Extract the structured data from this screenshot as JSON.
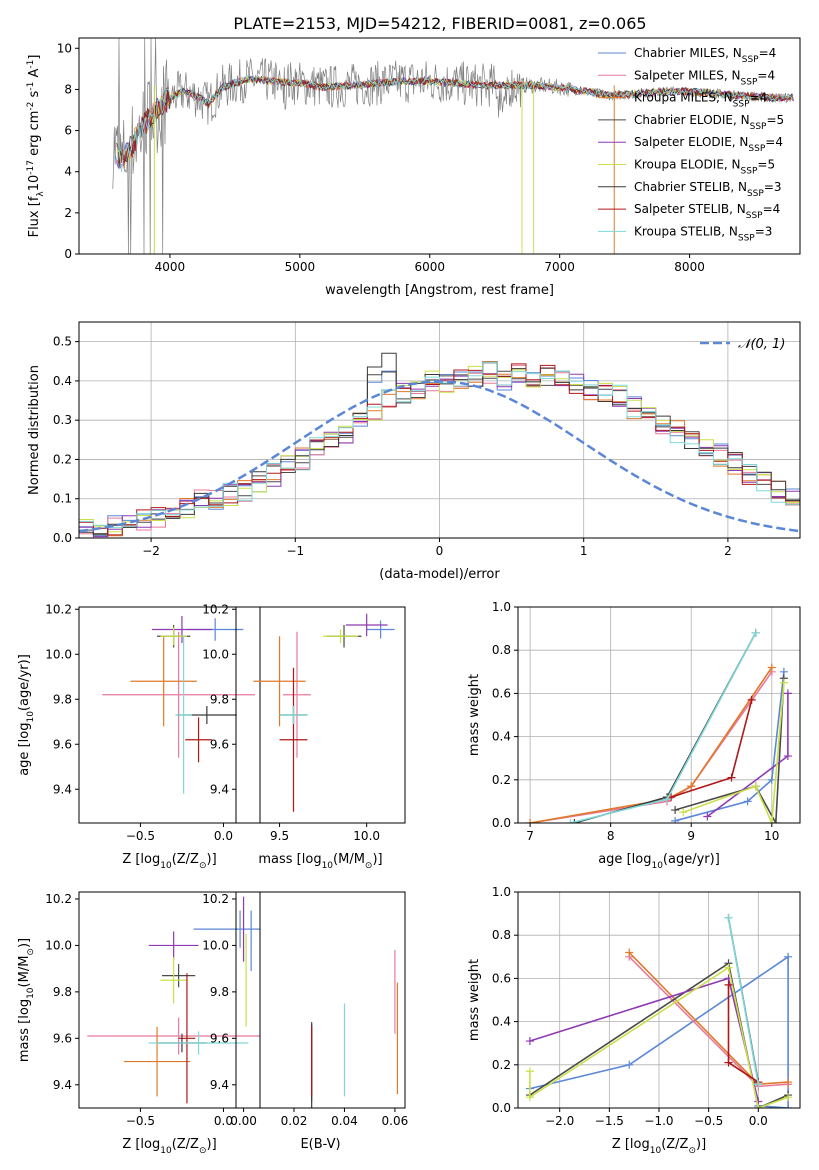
{
  "title": "PLATE=2153, MJD=54212, FIBERID=0081, z=0.065",
  "colors": {
    "series": [
      "#5b87d6",
      "#e8799a",
      "#e07a2a",
      "#4a4a4a",
      "#8e3ab2",
      "#c9e04a",
      "#3a3a3a",
      "#b01818",
      "#7fd8d8"
    ],
    "data": "#808080",
    "model": "#5fcfd8",
    "ref": "#5b87d6"
  },
  "chart_data": [
    {
      "type": "line",
      "title": "PLATE=2153, MJD=54212, FIBERID=0081, z=0.065",
      "xlabel": "wavelength [Angstrom, rest frame]",
      "ylabel_main": "Flux [f",
      "ylabel_sub": "λ",
      "ylabel_rest": "10",
      "ylabel_exp": "-17",
      "ylabel_tail": " erg cm",
      "ylabel_exp2": "-2",
      "ylabel_tail2": " s",
      "ylabel_exp3": "-1",
      "ylabel_tail3": " A",
      "ylabel_exp4": "-1",
      "ylabel_end": "]",
      "xlim": [
        3300,
        8850
      ],
      "ylim": [
        0,
        10.5
      ],
      "xticks": [
        "4000",
        "5000",
        "6000",
        "7000",
        "8000"
      ],
      "xtick_values": [
        4000,
        5000,
        6000,
        7000,
        8000
      ],
      "yticks": [
        "0",
        "2",
        "4",
        "6",
        "8",
        "10"
      ],
      "ytick_values": [
        0,
        2,
        4,
        6,
        8,
        10
      ],
      "continuum": [
        [
          3550,
          5.5
        ],
        [
          3620,
          4.5
        ],
        [
          3700,
          5.2
        ],
        [
          3800,
          6.3
        ],
        [
          3900,
          7.0
        ],
        [
          4000,
          7.6
        ],
        [
          4100,
          7.9
        ],
        [
          4200,
          7.7
        ],
        [
          4300,
          7.3
        ],
        [
          4400,
          8.1
        ],
        [
          4600,
          8.5
        ],
        [
          4800,
          8.4
        ],
        [
          5000,
          8.3
        ],
        [
          5200,
          8.1
        ],
        [
          5400,
          8.2
        ],
        [
          5600,
          8.3
        ],
        [
          5800,
          8.4
        ],
        [
          6000,
          8.4
        ],
        [
          6200,
          8.3
        ],
        [
          6400,
          8.2
        ],
        [
          6600,
          8.2
        ],
        [
          6800,
          8.2
        ],
        [
          7000,
          8.1
        ],
        [
          7200,
          7.9
        ],
        [
          7400,
          7.7
        ],
        [
          7600,
          7.8
        ],
        [
          7800,
          7.9
        ],
        [
          8000,
          7.9
        ],
        [
          8200,
          7.8
        ],
        [
          8400,
          7.7
        ],
        [
          8600,
          7.6
        ],
        [
          8800,
          7.6
        ]
      ],
      "legend": [
        {
          "label": "Chabrier MILES, N",
          "sub": "SSP",
          "tail": "=4"
        },
        {
          "label": "Salpeter MILES, N",
          "sub": "SSP",
          "tail": "=4"
        },
        {
          "label": "Kroupa MILES, N",
          "sub": "SSP",
          "tail": "=4"
        },
        {
          "label": "Chabrier ELODIE, N",
          "sub": "SSP",
          "tail": "=5"
        },
        {
          "label": "Salpeter ELODIE, N",
          "sub": "SSP",
          "tail": "=4"
        },
        {
          "label": "Kroupa ELODIE, N",
          "sub": "SSP",
          "tail": "=5"
        },
        {
          "label": "Chabrier STELIB, N",
          "sub": "SSP",
          "tail": "=3"
        },
        {
          "label": "Salpeter STELIB, N",
          "sub": "SSP",
          "tail": "=4"
        },
        {
          "label": "Kroupa STELIB, N",
          "sub": "SSP",
          "tail": "=3"
        }
      ],
      "legend_position": "right"
    },
    {
      "type": "histogram",
      "xlabel": "(data-model)/error",
      "ylabel": "Normed distribution",
      "xlim": [
        -2.5,
        2.5
      ],
      "ylim": [
        0,
        0.55
      ],
      "xticks": [
        "−2",
        "−1",
        "0",
        "1",
        "2"
      ],
      "xtick_values": [
        -2,
        -1,
        0,
        1,
        2
      ],
      "yticks": [
        "0.0",
        "0.1",
        "0.2",
        "0.3",
        "0.4",
        "0.5"
      ],
      "ytick_values": [
        0,
        0.1,
        0.2,
        0.3,
        0.4,
        0.5
      ],
      "bin_width": 0.1,
      "bin_start": -2.5,
      "base_values": [
        0.02,
        0.03,
        0.03,
        0.04,
        0.05,
        0.05,
        0.06,
        0.08,
        0.1,
        0.1,
        0.11,
        0.12,
        0.14,
        0.16,
        0.18,
        0.2,
        0.23,
        0.25,
        0.27,
        0.3,
        0.32,
        0.35,
        0.37,
        0.37,
        0.4,
        0.39,
        0.4,
        0.41,
        0.42,
        0.4,
        0.42,
        0.41,
        0.41,
        0.4,
        0.39,
        0.38,
        0.37,
        0.36,
        0.33,
        0.32,
        0.29,
        0.27,
        0.25,
        0.23,
        0.21,
        0.19,
        0.16,
        0.14,
        0.12,
        0.1,
        0.09,
        0.08,
        0.07,
        0.06,
        0.05,
        0.05,
        0.04,
        0.03,
        0.03,
        0.03,
        0.02,
        0.02,
        0.02
      ],
      "legend": [
        {
          "label": "𝒩(0, 1)"
        }
      ],
      "legend_position": "top-right",
      "grid": true
    },
    {
      "type": "errorbar",
      "xlabel": "Z [log",
      "xlabel_sub": "10",
      "xlabel_tail": "(Z/Z",
      "xlabel_sun": "⊙",
      "xlabel_end": ")]",
      "ylabel": "age  [log",
      "ylabel_sub": "10",
      "ylabel_tail": "(age/yr)]",
      "xlim": [
        -0.87,
        0.22
      ],
      "ylim": [
        9.25,
        10.21
      ],
      "xticks": [
        "−0.5",
        "0.0"
      ],
      "xtick_values": [
        -0.5,
        0
      ],
      "yticks": [
        "9.4",
        "9.6",
        "9.8",
        "10.0",
        "10.2"
      ],
      "ytick_values": [
        9.4,
        9.6,
        9.8,
        10.0,
        10.2
      ],
      "points": [
        {
          "x": -0.05,
          "y": 10.11,
          "xerr": 0.17,
          "yerr": 0.05,
          "c": 0
        },
        {
          "x": -0.27,
          "y": 9.82,
          "xerr": 0.46,
          "yerr": 0.28,
          "c": 1
        },
        {
          "x": -0.36,
          "y": 9.88,
          "xerr": 0.2,
          "yerr": 0.2,
          "c": 2
        },
        {
          "x": -0.3,
          "y": 10.08,
          "xerr": 0.1,
          "yerr": 0.05,
          "c": 3
        },
        {
          "x": -0.25,
          "y": 10.11,
          "xerr": 0.18,
          "yerr": 0.06,
          "c": 4
        },
        {
          "x": -0.3,
          "y": 10.08,
          "xerr": 0.08,
          "yerr": 0.04,
          "c": 5
        },
        {
          "x": -0.1,
          "y": 9.73,
          "xerr": 0.18,
          "yerr": 0.04,
          "c": 6
        },
        {
          "x": -0.15,
          "y": 9.62,
          "xerr": 0.08,
          "yerr": 0.1,
          "c": 7
        },
        {
          "x": -0.24,
          "y": 9.73,
          "xerr": 0.05,
          "yerr": 0.35,
          "c": 8
        }
      ]
    },
    {
      "type": "errorbar",
      "xlabel": "mass [log",
      "xlabel_sub": "10",
      "xlabel_tail": "(M/M",
      "xlabel_sun": "⊙",
      "xlabel_end": ")]",
      "xlim": [
        9.25,
        10.22
      ],
      "ylim": [
        9.25,
        10.21
      ],
      "xticks": [
        "9.5",
        "10.0"
      ],
      "xtick_values": [
        9.5,
        10.0
      ],
      "yticks": [
        "9.4",
        "9.6",
        "9.8",
        "10.0",
        "10.2"
      ],
      "ytick_values": [
        9.4,
        9.6,
        9.8,
        10.0,
        10.2
      ],
      "points": [
        {
          "x": 10.08,
          "y": 10.11,
          "xerr": 0.08,
          "yerr": 0.04,
          "c": 0
        },
        {
          "x": 9.6,
          "y": 9.82,
          "xerr": 0.08,
          "yerr": 0.28,
          "c": 1
        },
        {
          "x": 9.5,
          "y": 9.88,
          "xerr": 0.15,
          "yerr": 0.2,
          "c": 2
        },
        {
          "x": 9.87,
          "y": 10.08,
          "xerr": 0.1,
          "yerr": 0.05,
          "c": 3
        },
        {
          "x": 10.0,
          "y": 10.13,
          "xerr": 0.12,
          "yerr": 0.05,
          "c": 4
        },
        {
          "x": 9.85,
          "y": 10.08,
          "xerr": 0.1,
          "yerr": 0.03,
          "c": 5
        },
        {
          "x": 9.58,
          "y": 9.73,
          "xerr": 0.08,
          "yerr": 0.04,
          "c": 6
        },
        {
          "x": 9.58,
          "y": 9.62,
          "xerr": 0.08,
          "yerr": 0.32,
          "c": 7
        },
        {
          "x": 9.58,
          "y": 9.73,
          "xerr": 0.08,
          "yerr": 0.04,
          "c": 8
        }
      ]
    },
    {
      "type": "line",
      "xlabel": "age  [log",
      "xlabel_sub": "10",
      "xlabel_tail": "(age/yr)]",
      "ylabel": "mass weight",
      "xlim": [
        6.85,
        10.35
      ],
      "ylim": [
        0,
        1.0
      ],
      "xticks": [
        "7",
        "8",
        "9",
        "10"
      ],
      "xtick_values": [
        7,
        8,
        9,
        10
      ],
      "yticks": [
        "0.0",
        "0.2",
        "0.4",
        "0.6",
        "0.8",
        "1.0"
      ],
      "ytick_values": [
        0,
        0.2,
        0.4,
        0.6,
        0.8,
        1.0
      ],
      "series": [
        {
          "c": 0,
          "points": [
            [
              8.8,
              0.01
            ],
            [
              9.7,
              0.1
            ],
            [
              10.0,
              0.2
            ],
            [
              10.15,
              0.7
            ]
          ]
        },
        {
          "c": 1,
          "points": [
            [
              7.0,
              0.0
            ],
            [
              8.7,
              0.1
            ],
            [
              9.0,
              0.17
            ],
            [
              10.0,
              0.7
            ]
          ]
        },
        {
          "c": 2,
          "points": [
            [
              7.0,
              0.0
            ],
            [
              8.7,
              0.11
            ],
            [
              9.0,
              0.17
            ],
            [
              10.0,
              0.72
            ]
          ]
        },
        {
          "c": 3,
          "points": [
            [
              8.8,
              0.06
            ],
            [
              9.8,
              0.17
            ],
            [
              10.05,
              0.0
            ],
            [
              10.15,
              0.67
            ]
          ]
        },
        {
          "c": 4,
          "points": [
            [
              9.2,
              0.03
            ],
            [
              10.2,
              0.31
            ],
            [
              10.2,
              0.6
            ]
          ]
        },
        {
          "c": 5,
          "points": [
            [
              8.9,
              0.05
            ],
            [
              9.8,
              0.17
            ],
            [
              10.0,
              0.0
            ],
            [
              10.15,
              0.65
            ]
          ]
        },
        {
          "c": 6,
          "points": [
            [
              7.55,
              0.0
            ],
            [
              8.7,
              0.12
            ],
            [
              9.8,
              0.88
            ]
          ]
        },
        {
          "c": 7,
          "points": [
            [
              8.75,
              0.12
            ],
            [
              9.5,
              0.21
            ],
            [
              9.75,
              0.57
            ]
          ]
        },
        {
          "c": 8,
          "points": [
            [
              7.5,
              0.0
            ],
            [
              8.7,
              0.11
            ],
            [
              9.8,
              0.88
            ]
          ]
        }
      ],
      "grid": true
    },
    {
      "type": "errorbar",
      "xlabel": "Z [log",
      "xlabel_sub": "10",
      "xlabel_tail": "(Z/Z",
      "xlabel_sun": "⊙",
      "xlabel_end": ")]",
      "ylabel": "mass [log",
      "ylabel_sub": "10",
      "ylabel_tail": "(M/M",
      "ylabel_sun": "⊙",
      "ylabel_end": ")]",
      "xlim": [
        -0.87,
        0.22
      ],
      "ylim": [
        9.3,
        10.23
      ],
      "xticks": [
        "−0.5",
        "0.0"
      ],
      "xtick_values": [
        -0.5,
        0
      ],
      "yticks": [
        "9.4",
        "9.6",
        "9.8",
        "10.0",
        "10.2"
      ],
      "ytick_values": [
        9.4,
        9.6,
        9.8,
        10.0,
        10.2
      ],
      "points": [
        {
          "x": 0.1,
          "y": 10.07,
          "xerr": 0.28,
          "yerr": 0.08,
          "c": 0
        },
        {
          "x": -0.27,
          "y": 9.61,
          "xerr": 0.55,
          "yerr": 0.08,
          "c": 1
        },
        {
          "x": -0.4,
          "y": 9.5,
          "xerr": 0.2,
          "yerr": 0.15,
          "c": 2
        },
        {
          "x": -0.27,
          "y": 9.87,
          "xerr": 0.1,
          "yerr": 0.05,
          "c": 3
        },
        {
          "x": -0.3,
          "y": 10.0,
          "xerr": 0.15,
          "yerr": 0.06,
          "c": 4
        },
        {
          "x": -0.3,
          "y": 9.85,
          "xerr": 0.08,
          "yerr": 0.1,
          "c": 5
        },
        {
          "x": -0.25,
          "y": 9.58,
          "xerr": 0.15,
          "yerr": 0.04,
          "c": 6
        },
        {
          "x": -0.22,
          "y": 9.6,
          "xerr": 0.05,
          "yerr": 0.28,
          "c": 7
        },
        {
          "x": -0.15,
          "y": 9.58,
          "xerr": 0.3,
          "yerr": 0.05,
          "c": 8
        }
      ]
    },
    {
      "type": "errorbar",
      "xlabel": "E(B-V)",
      "xlim": [
        -0.003,
        0.064
      ],
      "ylim": [
        9.3,
        10.23
      ],
      "xticks": [
        "0.00",
        "0.02",
        "0.04",
        "0.06"
      ],
      "xtick_values": [
        0,
        0.02,
        0.04,
        0.06
      ],
      "yticks": [
        "9.4",
        "9.6",
        "9.8",
        "10.0",
        "10.2"
      ],
      "ytick_values": [
        9.4,
        9.6,
        9.8,
        10.0,
        10.2
      ],
      "points": [
        {
          "x": 0.003,
          "y": 10.02,
          "yerr": 0.13,
          "c": 0
        },
        {
          "x": 0.06,
          "y": 9.8,
          "yerr": 0.18,
          "c": 1
        },
        {
          "x": 0.061,
          "y": 9.6,
          "yerr": 0.24,
          "c": 2
        },
        {
          "x": 0.027,
          "y": 9.5,
          "yerr": 0.17,
          "c": 3
        },
        {
          "x": 0.0,
          "y": 10.07,
          "yerr": 0.14,
          "c": 4
        },
        {
          "x": 0.001,
          "y": 9.85,
          "yerr": 0.2,
          "c": 5
        },
        {
          "x": 0.027,
          "y": 9.48,
          "yerr": 0.18,
          "c": 6
        },
        {
          "x": 0.027,
          "y": 9.5,
          "yerr": 0.15,
          "c": 7
        },
        {
          "x": 0.04,
          "y": 9.55,
          "yerr": 0.2,
          "c": 8
        }
      ]
    },
    {
      "type": "line",
      "xlabel": "Z [log",
      "xlabel_sub": "10",
      "xlabel_tail": "(Z/Z",
      "xlabel_sun": "⊙",
      "xlabel_end": ")]",
      "ylabel": "mass weight",
      "xlim": [
        -2.42,
        0.42
      ],
      "ylim": [
        0,
        1.0
      ],
      "xticks": [
        "−2.0",
        "−1.5",
        "−1.0",
        "−0.5",
        "0.0"
      ],
      "xtick_values": [
        -2.0,
        -1.5,
        -1.0,
        -0.5,
        0.0
      ],
      "yticks": [
        "0.0",
        "0.2",
        "0.4",
        "0.6",
        "0.8",
        "1.0"
      ],
      "ytick_values": [
        0,
        0.2,
        0.4,
        0.6,
        0.8,
        1.0
      ],
      "series": [
        {
          "c": 0,
          "points": [
            [
              -2.3,
              0.09
            ],
            [
              -1.3,
              0.2
            ],
            [
              0.3,
              0.7
            ],
            [
              0.3,
              0.0
            ],
            [
              0.0,
              0.01
            ]
          ]
        },
        {
          "c": 1,
          "points": [
            [
              -1.3,
              0.7
            ],
            [
              0.0,
              0.1
            ],
            [
              0.3,
              0.11
            ]
          ]
        },
        {
          "c": 2,
          "points": [
            [
              -1.3,
              0.72
            ],
            [
              0.0,
              0.11
            ],
            [
              0.3,
              0.12
            ]
          ]
        },
        {
          "c": 3,
          "points": [
            [
              -2.3,
              0.06
            ],
            [
              -0.3,
              0.67
            ],
            [
              0.0,
              0.0
            ],
            [
              0.3,
              0.06
            ]
          ]
        },
        {
          "c": 4,
          "points": [
            [
              -2.3,
              0.31
            ],
            [
              -0.3,
              0.6
            ],
            [
              0.0,
              0.03
            ]
          ]
        },
        {
          "c": 5,
          "points": [
            [
              -2.3,
              0.17
            ],
            [
              -2.3,
              0.05
            ],
            [
              -0.3,
              0.65
            ],
            [
              0.0,
              0.0
            ],
            [
              0.3,
              0.05
            ]
          ]
        },
        {
          "c": 6,
          "points": [
            [
              -0.3,
              0.88
            ],
            [
              0.0,
              0.12
            ]
          ]
        },
        {
          "c": 7,
          "points": [
            [
              -0.3,
              0.57
            ],
            [
              -0.3,
              0.21
            ],
            [
              0.0,
              0.12
            ]
          ]
        },
        {
          "c": 8,
          "points": [
            [
              -0.3,
              0.88
            ],
            [
              0.0,
              0.11
            ]
          ]
        }
      ],
      "grid": true
    }
  ]
}
